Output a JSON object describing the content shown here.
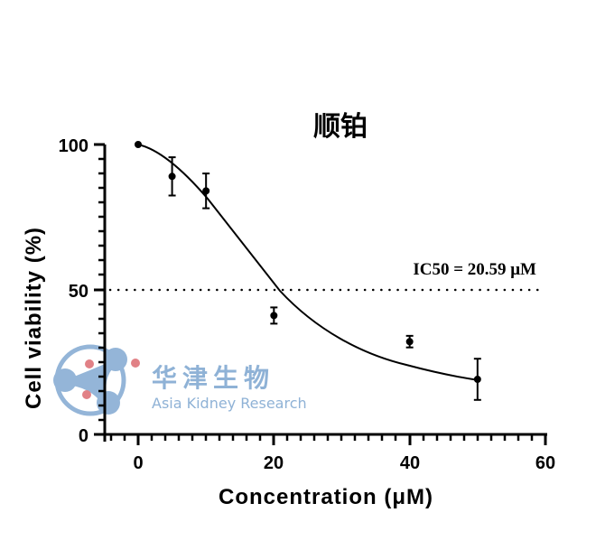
{
  "chart_data": {
    "type": "scatter",
    "title": "顺铂",
    "xlabel": "Concentration (μM)",
    "ylabel": "Cell viability (%)",
    "xlim": [
      -5,
      60
    ],
    "ylim": [
      0,
      100
    ],
    "x_ticks": [
      "0",
      "20",
      "40",
      "60"
    ],
    "y_ticks": [
      "0",
      "50",
      "100"
    ],
    "grid": false,
    "legend": null,
    "series": [
      {
        "name": "Cell viability",
        "x": [
          0,
          5,
          10,
          20,
          40,
          50
        ],
        "values": [
          100,
          89,
          84,
          41,
          32,
          19
        ],
        "error": [
          0,
          6.6,
          6.0,
          2.8,
          2.0,
          7.1
        ]
      }
    ],
    "fit_curve": {
      "type": "dose-response (sigmoidal)",
      "ic50": 20.59
    },
    "reference_line": {
      "y": 50,
      "style": "dotted"
    },
    "annotations": [
      "IC50 = 20.59 μM"
    ]
  },
  "chart": {
    "title": "顺铂",
    "xlabel": "Concentration (μM)",
    "ylabel": "Cell viability (%)",
    "annotation": "IC50 = 20.59 μM",
    "x_ticks": [
      {
        "label": "0",
        "value": 0
      },
      {
        "label": "20",
        "value": 20
      },
      {
        "label": "40",
        "value": 40
      },
      {
        "label": "60",
        "value": 60
      }
    ],
    "y_ticks": [
      {
        "label": "0",
        "value": 0
      },
      {
        "label": "50",
        "value": 50
      },
      {
        "label": "100",
        "value": 100
      }
    ]
  },
  "watermark": {
    "chinese": "华津生物",
    "english": "Asia Kidney Research",
    "color": "#8fb2d6",
    "dot_color": "#e07b80"
  }
}
